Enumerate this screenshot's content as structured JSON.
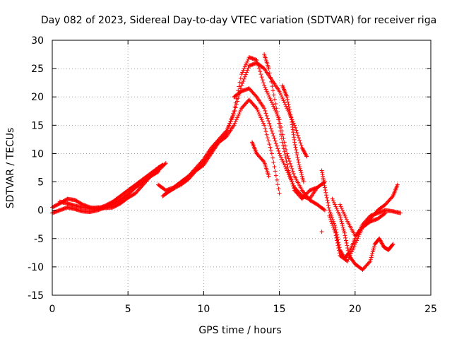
{
  "chart_data": {
    "type": "scatter",
    "title": "Day 082 of 2023, Sidereal Day-to-day VTEC variation (SDTVAR) for receiver riga",
    "xlabel": "GPS time / hours",
    "ylabel": "SDTVAR / TECUs",
    "xlim": [
      0,
      25
    ],
    "ylim": [
      -15,
      30
    ],
    "xticks": [
      0,
      5,
      10,
      15,
      20,
      25
    ],
    "yticks": [
      -15,
      -10,
      -5,
      0,
      5,
      10,
      15,
      20,
      25,
      30
    ],
    "grid": true,
    "marker": "+",
    "color": "#ff0000",
    "series": [
      {
        "name": "track-1",
        "points": [
          [
            0.0,
            0.5
          ],
          [
            0.5,
            1.2
          ],
          [
            1.0,
            2.0
          ],
          [
            1.5,
            1.8
          ],
          [
            2.0,
            1.0
          ],
          [
            2.5,
            0.5
          ],
          [
            3.0,
            0.3
          ],
          [
            3.5,
            0.8
          ],
          [
            4.0,
            1.5
          ],
          [
            4.5,
            2.5
          ],
          [
            5.0,
            3.5
          ],
          [
            5.5,
            4.5
          ],
          [
            6.0,
            5.5
          ],
          [
            6.5,
            6.5
          ],
          [
            7.0,
            7.5
          ],
          [
            7.3,
            8.0
          ]
        ]
      },
      {
        "name": "track-2",
        "points": [
          [
            0.0,
            -0.5
          ],
          [
            0.5,
            0.0
          ],
          [
            1.0,
            0.5
          ],
          [
            1.5,
            0.2
          ],
          [
            2.0,
            -0.2
          ],
          [
            2.5,
            -0.3
          ],
          [
            3.0,
            0.0
          ],
          [
            3.5,
            0.5
          ],
          [
            4.0,
            1.0
          ],
          [
            4.5,
            1.8
          ],
          [
            5.0,
            2.8
          ],
          [
            5.5,
            4.0
          ],
          [
            6.0,
            5.0
          ],
          [
            6.5,
            6.0
          ],
          [
            7.0,
            7.0
          ],
          [
            7.5,
            8.3
          ]
        ]
      },
      {
        "name": "track-3",
        "points": [
          [
            0.5,
            1.5
          ],
          [
            1.0,
            1.2
          ],
          [
            1.5,
            0.8
          ],
          [
            2.0,
            0.5
          ],
          [
            2.5,
            0.3
          ],
          [
            3.0,
            0.5
          ],
          [
            3.5,
            0.4
          ],
          [
            4.0,
            0.5
          ],
          [
            4.5,
            1.2
          ],
          [
            5.0,
            2.2
          ],
          [
            5.5,
            3.0
          ],
          [
            6.0,
            4.5
          ],
          [
            6.5,
            6.0
          ],
          [
            7.0,
            6.8
          ]
        ]
      },
      {
        "name": "track-4",
        "points": [
          [
            7.0,
            4.5
          ],
          [
            7.5,
            3.5
          ],
          [
            8.0,
            4.0
          ],
          [
            8.5,
            5.0
          ],
          [
            9.0,
            6.0
          ],
          [
            9.5,
            7.0
          ],
          [
            10.0,
            8.0
          ],
          [
            10.5,
            10.0
          ],
          [
            11.0,
            12.0
          ],
          [
            11.5,
            13.0
          ],
          [
            12.0,
            15.0
          ],
          [
            12.5,
            18.0
          ],
          [
            13.0,
            19.5
          ],
          [
            13.5,
            18.0
          ],
          [
            14.0,
            15.0
          ],
          [
            14.5,
            10.0
          ],
          [
            15.0,
            3.0
          ]
        ]
      },
      {
        "name": "track-5",
        "points": [
          [
            7.5,
            3.0
          ],
          [
            8.0,
            3.8
          ],
          [
            8.5,
            5.0
          ],
          [
            9.0,
            6.0
          ],
          [
            9.5,
            7.5
          ],
          [
            10.0,
            9.0
          ],
          [
            10.5,
            11.0
          ],
          [
            11.0,
            12.5
          ],
          [
            11.5,
            14.0
          ],
          [
            12.0,
            17.0
          ],
          [
            12.5,
            22.0
          ],
          [
            13.0,
            25.5
          ],
          [
            13.5,
            26.0
          ],
          [
            14.0,
            25.0
          ],
          [
            14.5,
            23.0
          ],
          [
            15.0,
            21.0
          ],
          [
            15.5,
            18.0
          ],
          [
            16.0,
            15.0
          ],
          [
            16.5,
            11.0
          ],
          [
            16.8,
            9.5
          ]
        ]
      },
      {
        "name": "track-6",
        "points": [
          [
            7.3,
            2.5
          ],
          [
            7.8,
            3.5
          ],
          [
            8.5,
            4.5
          ],
          [
            9.0,
            5.5
          ],
          [
            9.5,
            7.0
          ],
          [
            10.0,
            8.5
          ],
          [
            10.5,
            10.5
          ],
          [
            11.0,
            12.0
          ],
          [
            11.5,
            13.5
          ],
          [
            12.0,
            17.5
          ],
          [
            12.5,
            24.0
          ],
          [
            13.0,
            27.0
          ],
          [
            13.5,
            26.5
          ],
          [
            14.0,
            22.0
          ],
          [
            14.5,
            19.0
          ],
          [
            15.0,
            16.0
          ],
          [
            15.5,
            10.0
          ],
          [
            16.0,
            6.0
          ],
          [
            16.5,
            3.5
          ],
          [
            17.0,
            1.8
          ],
          [
            17.5,
            1.0
          ],
          [
            18.0,
            0.0
          ]
        ]
      },
      {
        "name": "track-7",
        "points": [
          [
            12.0,
            20.0
          ],
          [
            12.5,
            21.0
          ],
          [
            13.0,
            21.5
          ],
          [
            13.5,
            20.0
          ],
          [
            14.0,
            18.0
          ],
          [
            14.5,
            14.0
          ],
          [
            15.0,
            10.0
          ],
          [
            15.5,
            7.0
          ],
          [
            16.0,
            4.0
          ],
          [
            16.5,
            2.5
          ],
          [
            17.0,
            2.0
          ],
          [
            17.5,
            4.0
          ],
          [
            18.0,
            5.0
          ]
        ]
      },
      {
        "name": "track-8",
        "points": [
          [
            13.2,
            12.0
          ],
          [
            13.5,
            10.0
          ],
          [
            14.0,
            8.5
          ],
          [
            14.3,
            6.0
          ]
        ]
      },
      {
        "name": "track-9",
        "points": [
          [
            14.0,
            27.5
          ],
          [
            14.3,
            25.0
          ],
          [
            14.8,
            18.0
          ],
          [
            15.2,
            12.0
          ],
          [
            15.6,
            7.0
          ],
          [
            16.0,
            3.5
          ],
          [
            16.5,
            2.0
          ],
          [
            17.0,
            3.5
          ],
          [
            17.5,
            4.0
          ]
        ]
      },
      {
        "name": "track-10",
        "points": [
          [
            15.2,
            22.0
          ],
          [
            15.5,
            20.0
          ],
          [
            15.8,
            16.0
          ],
          [
            16.0,
            12.0
          ],
          [
            16.3,
            8.0
          ],
          [
            16.6,
            5.0
          ]
        ]
      },
      {
        "name": "track-11",
        "points": [
          [
            17.8,
            -3.8
          ]
        ]
      },
      {
        "name": "track-12",
        "points": [
          [
            17.8,
            7.0
          ],
          [
            18.0,
            4.0
          ],
          [
            18.3,
            0.0
          ],
          [
            18.7,
            -3.0
          ],
          [
            19.0,
            -7.0
          ],
          [
            19.3,
            -8.5
          ],
          [
            19.6,
            -7.5
          ],
          [
            20.0,
            -5.0
          ],
          [
            20.5,
            -2.5
          ],
          [
            21.0,
            -1.0
          ],
          [
            21.5,
            -0.5
          ],
          [
            22.0,
            0.0
          ],
          [
            22.5,
            -0.2
          ],
          [
            23.0,
            -0.5
          ]
        ]
      },
      {
        "name": "track-13",
        "points": [
          [
            18.5,
            2.0
          ],
          [
            19.0,
            -1.0
          ],
          [
            19.3,
            -4.0
          ],
          [
            19.6,
            -8.0
          ],
          [
            20.0,
            -9.5
          ],
          [
            20.5,
            -10.5
          ],
          [
            21.0,
            -9.0
          ],
          [
            21.3,
            -6.0
          ],
          [
            21.6,
            -5.0
          ],
          [
            21.9,
            -6.5
          ],
          [
            22.2,
            -7.0
          ],
          [
            22.5,
            -6.0
          ]
        ]
      },
      {
        "name": "track-14",
        "points": [
          [
            18.3,
            -1.0
          ],
          [
            18.7,
            -4.0
          ],
          [
            19.0,
            -8.0
          ],
          [
            19.5,
            -9.0
          ],
          [
            20.0,
            -6.0
          ],
          [
            20.5,
            -3.0
          ],
          [
            21.0,
            -1.5
          ],
          [
            21.5,
            0.0
          ],
          [
            22.0,
            1.0
          ],
          [
            22.5,
            2.5
          ],
          [
            22.8,
            4.5
          ]
        ]
      },
      {
        "name": "track-15",
        "points": [
          [
            19.0,
            1.0
          ],
          [
            19.5,
            -2.0
          ],
          [
            20.0,
            -4.5
          ],
          [
            20.5,
            -3.0
          ],
          [
            21.0,
            -2.0
          ],
          [
            21.5,
            -1.5
          ],
          [
            22.0,
            -0.5
          ]
        ]
      }
    ]
  }
}
